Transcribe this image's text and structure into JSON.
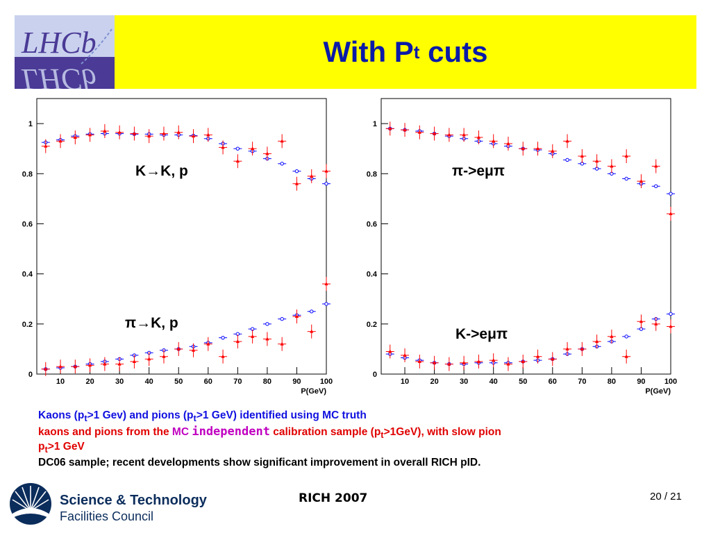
{
  "slide": {
    "title_main": "With P",
    "title_sub": "t",
    "title_tail": " cuts",
    "logo_text": "LHCb"
  },
  "captions": {
    "line1_a": "Kaons (p",
    "line1_a_sub": "t",
    "line1_b": ">1 Gev) and pions (p",
    "line1_b_sub": "t",
    "line1_c": ">1 GeV) identified using MC truth",
    "line2_a": "kaons and pions from the ",
    "line2_mc": "MC ",
    "line2_indep": "independent",
    "line2_b": " calibration sample (p",
    "line2_b_sub": "t",
    "line2_c": ">1GeV), with slow pion",
    "line3_a": "p",
    "line3_sub": "t",
    "line3_b": ">1 GeV",
    "line4": "DC06 sample; recent developments show significant improvement in overall RICH pID."
  },
  "footer": {
    "center": "RICH 2007",
    "page": "20 / 21",
    "org_line1": "Science & Technology",
    "org_line2": "Facilities Council"
  },
  "colors": {
    "header_bg": "#ffff00",
    "title": "#0a1aa8",
    "series_mc": "#0000ff",
    "series_calib": "#ff0000"
  },
  "chart_data": [
    {
      "type": "scatter",
      "xlabel": "P(GeV)",
      "ylabel": "",
      "xlim": [
        2,
        100
      ],
      "ylim": [
        0,
        1.1
      ],
      "xticks": [
        10,
        20,
        30,
        40,
        50,
        60,
        70,
        80,
        90,
        100
      ],
      "yticks": [
        0,
        0.2,
        0.4,
        0.6,
        0.8,
        1
      ],
      "annotations": [
        "K→K, p",
        "π→K, p"
      ],
      "series": [
        {
          "marker": "open-circle",
          "color": "#0000ff",
          "x": [
            5,
            10,
            15,
            20,
            25,
            30,
            35,
            40,
            45,
            50,
            55,
            60,
            65,
            70,
            75,
            80,
            85,
            90,
            95,
            100
          ],
          "y": [
            0.925,
            0.935,
            0.95,
            0.958,
            0.96,
            0.96,
            0.958,
            0.958,
            0.955,
            0.955,
            0.952,
            0.94,
            0.92,
            0.9,
            0.89,
            0.86,
            0.84,
            0.81,
            0.78,
            0.76
          ]
        },
        {
          "marker": "filled-triangle",
          "color": "#ff0000",
          "x": [
            5,
            10,
            15,
            20,
            25,
            30,
            35,
            40,
            45,
            50,
            55,
            60,
            65,
            70,
            75,
            80,
            85,
            90,
            95,
            100
          ],
          "y": [
            0.91,
            0.93,
            0.945,
            0.955,
            0.97,
            0.965,
            0.96,
            0.95,
            0.96,
            0.965,
            0.95,
            0.955,
            0.905,
            0.85,
            0.9,
            0.88,
            0.93,
            0.76,
            0.79,
            0.81
          ]
        },
        {
          "marker": "open-circle",
          "color": "#0000ff",
          "x": [
            5,
            10,
            15,
            20,
            25,
            30,
            35,
            40,
            45,
            50,
            55,
            60,
            65,
            70,
            75,
            80,
            85,
            90,
            95,
            100
          ],
          "y": [
            0.02,
            0.025,
            0.03,
            0.04,
            0.05,
            0.06,
            0.075,
            0.085,
            0.095,
            0.1,
            0.11,
            0.125,
            0.145,
            0.16,
            0.18,
            0.2,
            0.22,
            0.235,
            0.25,
            0.28
          ]
        },
        {
          "marker": "filled-triangle",
          "color": "#ff0000",
          "x": [
            5,
            10,
            15,
            20,
            25,
            30,
            35,
            40,
            45,
            50,
            55,
            60,
            65,
            70,
            75,
            80,
            85,
            90,
            95,
            100
          ],
          "y": [
            0.02,
            0.03,
            0.03,
            0.035,
            0.04,
            0.04,
            0.05,
            0.06,
            0.07,
            0.1,
            0.095,
            0.12,
            0.07,
            0.13,
            0.15,
            0.14,
            0.12,
            0.23,
            0.17,
            0.36
          ]
        }
      ]
    },
    {
      "type": "scatter",
      "xlabel": "P(GeV)",
      "ylabel": "",
      "xlim": [
        2,
        100
      ],
      "ylim": [
        0,
        1.1
      ],
      "xticks": [
        10,
        20,
        30,
        40,
        50,
        60,
        70,
        80,
        90,
        100
      ],
      "yticks": [
        0,
        0.2,
        0.4,
        0.6,
        0.8,
        1
      ],
      "annotations": [
        "π->eμπ",
        "K->eμπ"
      ],
      "series": [
        {
          "marker": "open-circle",
          "color": "#0000ff",
          "x": [
            5,
            10,
            15,
            20,
            25,
            30,
            35,
            40,
            45,
            50,
            55,
            60,
            65,
            70,
            75,
            80,
            85,
            90,
            95,
            100
          ],
          "y": [
            0.98,
            0.975,
            0.97,
            0.96,
            0.95,
            0.94,
            0.93,
            0.92,
            0.91,
            0.9,
            0.895,
            0.88,
            0.855,
            0.84,
            0.82,
            0.8,
            0.78,
            0.76,
            0.75,
            0.72
          ]
        },
        {
          "marker": "filled-triangle",
          "color": "#ff0000",
          "x": [
            5,
            10,
            15,
            20,
            25,
            30,
            35,
            40,
            45,
            50,
            55,
            60,
            65,
            70,
            75,
            80,
            85,
            90,
            95,
            100
          ],
          "y": [
            0.98,
            0.975,
            0.965,
            0.96,
            0.955,
            0.955,
            0.945,
            0.93,
            0.92,
            0.9,
            0.9,
            0.89,
            0.93,
            0.87,
            0.85,
            0.83,
            0.87,
            0.77,
            0.83,
            0.64
          ]
        },
        {
          "marker": "open-circle",
          "color": "#0000ff",
          "x": [
            5,
            10,
            15,
            20,
            25,
            30,
            35,
            40,
            45,
            50,
            55,
            60,
            65,
            70,
            75,
            80,
            85,
            90,
            95,
            100
          ],
          "y": [
            0.08,
            0.065,
            0.055,
            0.045,
            0.04,
            0.04,
            0.045,
            0.045,
            0.045,
            0.05,
            0.055,
            0.06,
            0.08,
            0.1,
            0.11,
            0.13,
            0.15,
            0.18,
            0.22,
            0.24
          ]
        },
        {
          "marker": "filled-triangle",
          "color": "#ff0000",
          "x": [
            5,
            10,
            15,
            20,
            25,
            30,
            35,
            40,
            45,
            50,
            55,
            60,
            65,
            70,
            75,
            80,
            85,
            90,
            95,
            100
          ],
          "y": [
            0.09,
            0.075,
            0.05,
            0.045,
            0.04,
            0.045,
            0.05,
            0.055,
            0.04,
            0.05,
            0.07,
            0.06,
            0.1,
            0.1,
            0.13,
            0.15,
            0.07,
            0.21,
            0.2,
            0.19
          ]
        }
      ]
    }
  ]
}
